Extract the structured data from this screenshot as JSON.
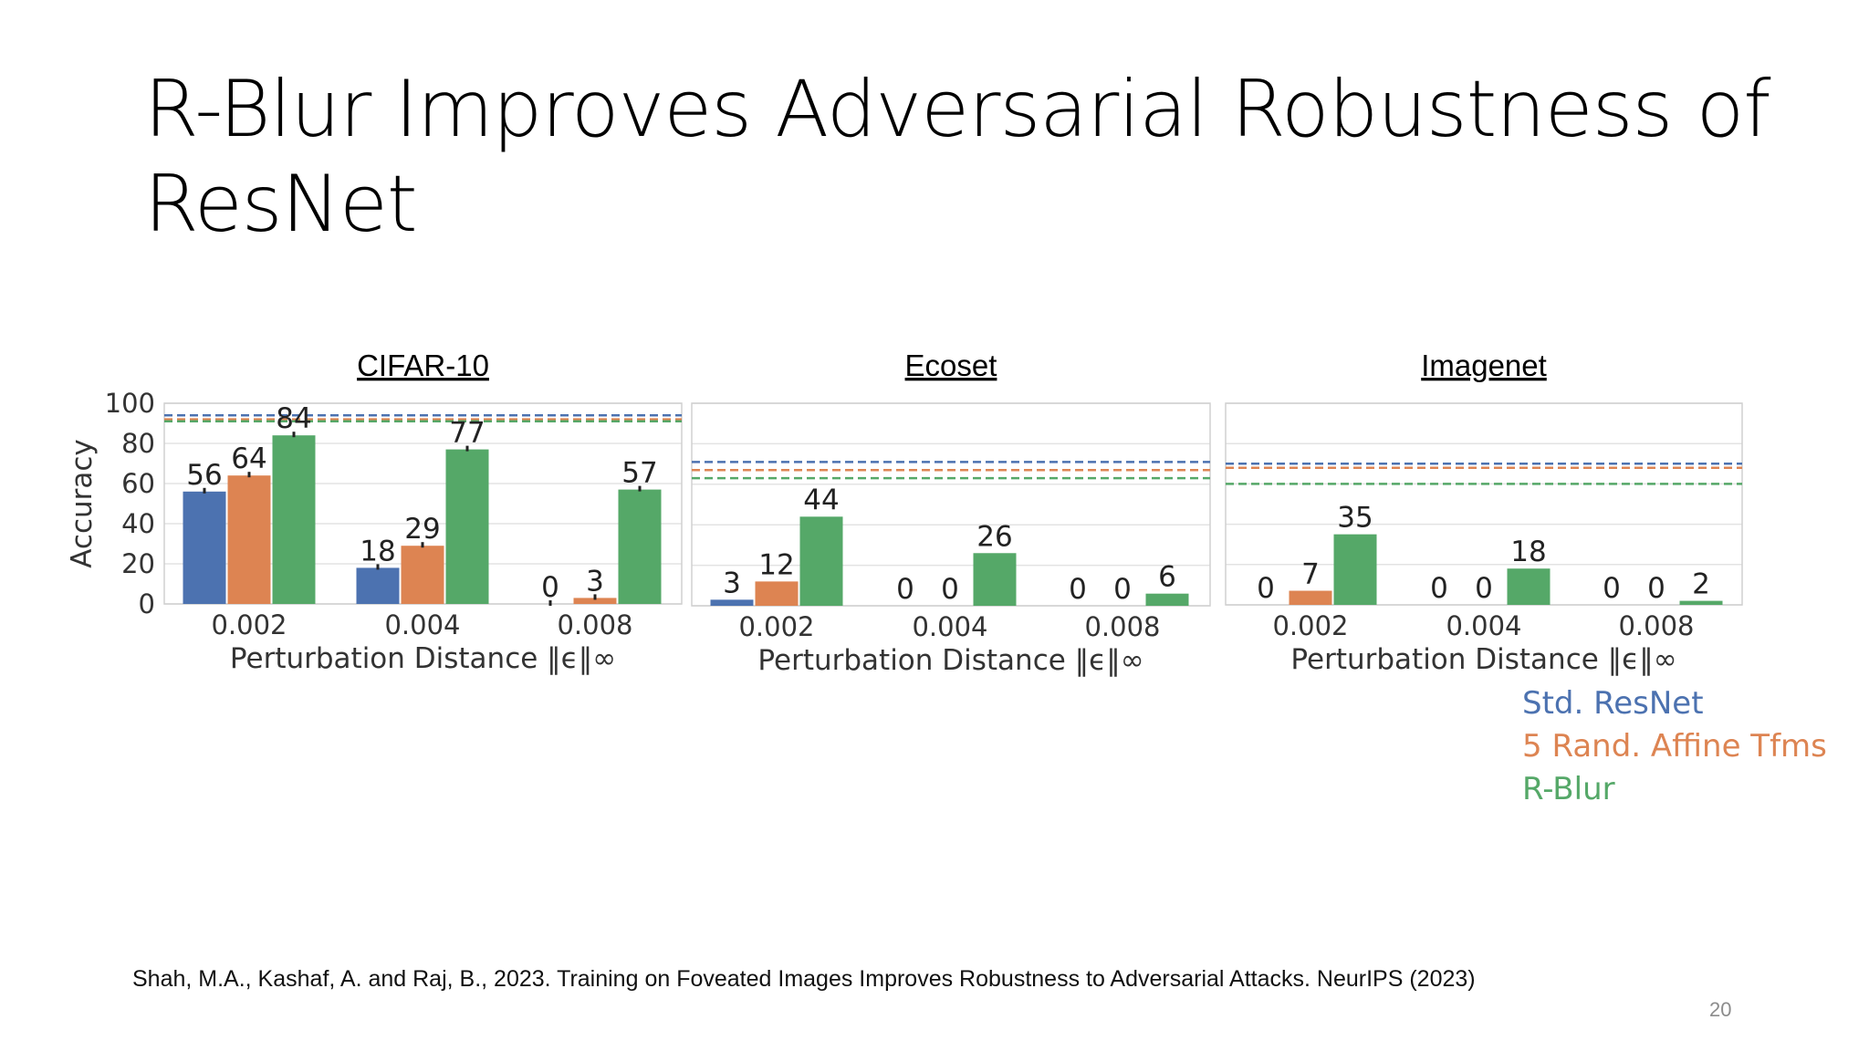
{
  "slide": {
    "title_line1": "R-Blur Improves Adversarial Robustness of",
    "title_line2": "ResNet",
    "citation": "Shah, M.A., Kashaf, A. and Raj, B., 2023. Training on Foveated Images Improves Robustness to Adversarial Attacks. NeurIPS (2023)",
    "page_number": "20"
  },
  "colors": {
    "std": "#4c72b0",
    "affine": "#dd8452",
    "rblur": "#55a868"
  },
  "legend": [
    {
      "label": "Std. ResNet",
      "color": "#4c72b0"
    },
    {
      "label": "5 Rand. Affine Tfms",
      "color": "#dd8452"
    },
    {
      "label": "R-Blur",
      "color": "#55a868"
    }
  ],
  "chart_data": [
    {
      "type": "bar",
      "title": "CIFAR-10",
      "xlabel": "Perturbation Distance ‖ϵ‖∞",
      "ylabel": "Accuracy",
      "ylim": [
        0,
        100
      ],
      "yticks": [
        "0",
        "20",
        "40",
        "60",
        "80",
        "100"
      ],
      "grid": true,
      "categories": [
        "0.002",
        "0.004",
        "0.008"
      ],
      "series": [
        {
          "name": "Std. ResNet",
          "values": [
            56,
            18,
            0
          ],
          "labels": [
            "56",
            "18",
            "0"
          ],
          "clean": 94
        },
        {
          "name": "5 Rand. Affine Tfms",
          "values": [
            64,
            29,
            3
          ],
          "labels": [
            "64",
            "29",
            "3"
          ],
          "clean": 92
        },
        {
          "name": "R-Blur",
          "values": [
            84,
            77,
            57
          ],
          "labels": [
            "84",
            "77",
            "57"
          ],
          "clean": 91
        }
      ]
    },
    {
      "type": "bar",
      "title": "Ecoset",
      "xlabel": "Perturbation Distance ‖ϵ‖∞",
      "ylim": [
        0,
        100
      ],
      "grid": true,
      "categories": [
        "0.002",
        "0.004",
        "0.008"
      ],
      "series": [
        {
          "name": "Std. ResNet",
          "values": [
            3,
            0,
            0
          ],
          "labels": [
            "3",
            "0",
            "0"
          ],
          "clean": 71
        },
        {
          "name": "5 Rand. Affine Tfms",
          "values": [
            12,
            0,
            0
          ],
          "labels": [
            "12",
            "0",
            "0"
          ],
          "clean": 67
        },
        {
          "name": "R-Blur",
          "values": [
            44,
            26,
            6
          ],
          "labels": [
            "44",
            "26",
            "6"
          ],
          "clean": 63
        }
      ]
    },
    {
      "type": "bar",
      "title": "Imagenet",
      "xlabel": "Perturbation Distance ‖ϵ‖∞",
      "ylim": [
        0,
        100
      ],
      "grid": true,
      "categories": [
        "0.002",
        "0.004",
        "0.008"
      ],
      "series": [
        {
          "name": "Std. ResNet",
          "values": [
            0,
            0,
            0
          ],
          "labels": [
            "0",
            "0",
            "0"
          ],
          "clean": 70
        },
        {
          "name": "5 Rand. Affine Tfms",
          "values": [
            7,
            0,
            0
          ],
          "labels": [
            "7",
            "0",
            "0"
          ],
          "clean": 68
        },
        {
          "name": "R-Blur",
          "values": [
            35,
            18,
            2
          ],
          "labels": [
            "35",
            "18",
            "2"
          ],
          "clean": 60
        }
      ]
    }
  ]
}
